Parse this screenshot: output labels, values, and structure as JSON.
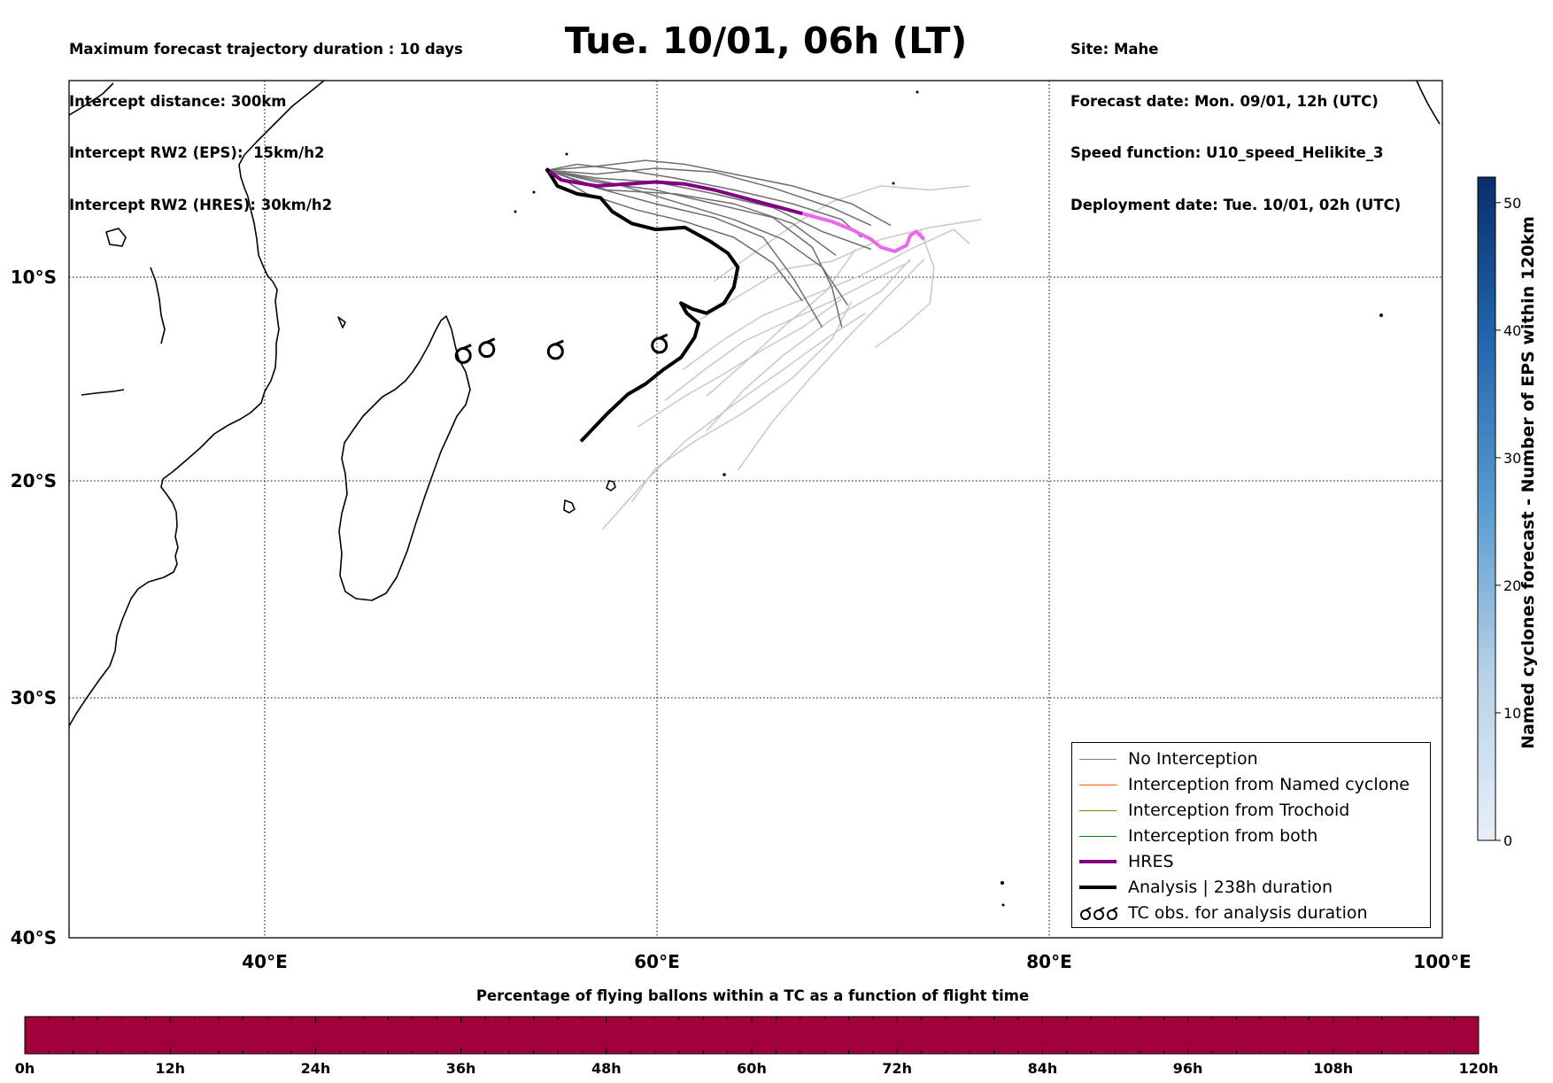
{
  "header": {
    "left_lines": [
      "Maximum forecast trajectory duration : 10 days",
      "Intercept distance: 300km",
      "Intercept RW2 (EPS):  15km/h2",
      "Intercept RW2 (HRES): 30km/h2"
    ],
    "title": "Tue. 10/01, 06h (LT)",
    "right_lines": [
      "Site: Mahe",
      "Forecast date: Mon. 09/01, 12h (UTC)",
      "Speed function: U10_speed_Helikite_3",
      "Deployment date: Tue. 10/01, 02h (UTC)"
    ]
  },
  "map": {
    "lon_labels": [
      "40°E",
      "60°E",
      "80°E",
      "100°E"
    ],
    "lat_labels": [
      "10°S",
      "20°S",
      "30°S",
      "40°S"
    ],
    "colors": {
      "hres_early": "#800080",
      "hres_late": "#ee66ee",
      "analysis": "#000000",
      "ens_no_interception": "#6e6e6e",
      "ens_other": "#c8c8c8"
    },
    "site": {
      "name": "Mahe",
      "lon": 55.5,
      "lat": -4.6
    },
    "tc_obs_markers": [
      {
        "lon": 51.2,
        "lat": -13.9
      },
      {
        "lon": 52.4,
        "lat": -13.6
      },
      {
        "lon": 55.9,
        "lat": -13.7
      },
      {
        "lon": 61.2,
        "lat": -13.4
      }
    ],
    "hres_track": [
      [
        55.5,
        -4.6
      ],
      [
        56.2,
        -5.1
      ],
      [
        58,
        -5.4
      ],
      [
        59.5,
        -5.3
      ],
      [
        61,
        -5.2
      ],
      [
        62.5,
        -5.3
      ],
      [
        64,
        -5.6
      ],
      [
        65.5,
        -6
      ],
      [
        67,
        -6.4
      ],
      [
        68.5,
        -6.8
      ],
      [
        70,
        -7.2
      ],
      [
        71,
        -7.6
      ],
      [
        72,
        -8.1
      ],
      [
        72.5,
        -8.5
      ],
      [
        73.2,
        -8.7
      ],
      [
        73.8,
        -8.4
      ],
      [
        74,
        -7.9
      ],
      [
        74.3,
        -7.7
      ],
      [
        74.7,
        -8.1
      ]
    ],
    "hres_color_change_index": 9,
    "analysis_track": [
      [
        55.5,
        -4.6
      ],
      [
        56,
        -5.4
      ],
      [
        57,
        -5.8
      ],
      [
        58.2,
        -6
      ],
      [
        58.8,
        -6.7
      ],
      [
        59.8,
        -7.3
      ],
      [
        61,
        -7.6
      ],
      [
        62.5,
        -7.5
      ],
      [
        63.8,
        -8.2
      ],
      [
        64.7,
        -8.8
      ],
      [
        65.2,
        -9.5
      ],
      [
        65,
        -10.5
      ],
      [
        64.5,
        -11.3
      ],
      [
        63.6,
        -11.8
      ],
      [
        62.9,
        -11.6
      ],
      [
        62.3,
        -11.3
      ],
      [
        62.6,
        -11.8
      ],
      [
        63.2,
        -12.3
      ],
      [
        63,
        -13
      ],
      [
        62.3,
        -14
      ],
      [
        61.4,
        -14.6
      ],
      [
        60.5,
        -15.3
      ],
      [
        59.6,
        -15.8
      ],
      [
        58.6,
        -16.7
      ],
      [
        57.8,
        -17.5
      ],
      [
        57.2,
        -18.1
      ]
    ],
    "ensemble_no_interception": [
      [
        [
          55.5,
          -4.6
        ],
        [
          58,
          -4.8
        ],
        [
          61,
          -4.5
        ],
        [
          64,
          -4.7
        ],
        [
          67,
          -5.5
        ],
        [
          70,
          -6.5
        ],
        [
          72,
          -7.4
        ]
      ],
      [
        [
          55.5,
          -4.6
        ],
        [
          58,
          -5.2
        ],
        [
          61,
          -5.6
        ],
        [
          64,
          -6.3
        ],
        [
          67,
          -7
        ],
        [
          69,
          -8.5
        ],
        [
          70,
          -10.5
        ],
        [
          70.5,
          -12.5
        ]
      ],
      [
        [
          55.5,
          -4.6
        ],
        [
          58,
          -5.5
        ],
        [
          61,
          -6.3
        ],
        [
          64,
          -7
        ],
        [
          66.5,
          -8
        ],
        [
          68,
          -10
        ],
        [
          69.5,
          -12.5
        ]
      ],
      [
        [
          55.5,
          -4.6
        ],
        [
          58,
          -4.4
        ],
        [
          60.5,
          -4.1
        ],
        [
          62.5,
          -4.3
        ],
        [
          65,
          -4.8
        ],
        [
          68,
          -5.4
        ],
        [
          71,
          -6.3
        ],
        [
          73,
          -7.4
        ]
      ],
      [
        [
          55.5,
          -4.6
        ],
        [
          58,
          -5
        ],
        [
          61,
          -5.2
        ],
        [
          64,
          -5.8
        ],
        [
          67,
          -6.5
        ],
        [
          69.5,
          -7.7
        ],
        [
          72,
          -8.6
        ]
      ],
      [
        [
          55.5,
          -4.6
        ],
        [
          57.5,
          -5.8
        ],
        [
          60,
          -6.6
        ],
        [
          62.5,
          -7.2
        ],
        [
          65,
          -8
        ],
        [
          67,
          -9.3
        ],
        [
          68.5,
          -11.2
        ]
      ],
      [
        [
          55.5,
          -4.6
        ],
        [
          58.5,
          -5.6
        ],
        [
          62,
          -5.8
        ],
        [
          65,
          -6.3
        ],
        [
          68,
          -7.3
        ],
        [
          70.2,
          -8.9
        ]
      ],
      [
        [
          55.5,
          -4.6
        ],
        [
          57,
          -4.3
        ],
        [
          59.5,
          -4.6
        ],
        [
          62,
          -5
        ],
        [
          65,
          -5.6
        ],
        [
          68,
          -6.3
        ],
        [
          70.5,
          -7.1
        ],
        [
          71.5,
          -8
        ]
      ],
      [
        [
          55.5,
          -4.6
        ],
        [
          59,
          -5.3
        ],
        [
          62,
          -6.2
        ],
        [
          65,
          -7.1
        ],
        [
          67.5,
          -8.1
        ],
        [
          69.5,
          -9.5
        ],
        [
          70.8,
          -11.4
        ]
      ]
    ],
    "ensemble_other": [
      [
        [
          64,
          -10.2
        ],
        [
          66,
          -8.8
        ],
        [
          68,
          -7.4
        ],
        [
          70,
          -6.2
        ],
        [
          72.5,
          -5.4
        ],
        [
          75,
          -5.6
        ],
        [
          77,
          -5.4
        ]
      ],
      [
        [
          63.3,
          -12.1
        ],
        [
          65.5,
          -10.8
        ],
        [
          67.5,
          -9.6
        ],
        [
          70,
          -9.2
        ],
        [
          72.5,
          -8.1
        ],
        [
          75,
          -7.5
        ],
        [
          77.6,
          -7.1
        ]
      ],
      [
        [
          62.4,
          -14.6
        ],
        [
          64.5,
          -13.1
        ],
        [
          66.5,
          -11.9
        ],
        [
          69,
          -10.9
        ],
        [
          71.5,
          -9.9
        ],
        [
          74,
          -8.6
        ],
        [
          76.2,
          -7.6
        ],
        [
          77,
          -8.3
        ]
      ],
      [
        [
          61.5,
          -16.1
        ],
        [
          63.5,
          -14.6
        ],
        [
          65.5,
          -13.2
        ],
        [
          67.5,
          -12.3
        ],
        [
          70,
          -11.2
        ],
        [
          72,
          -10.2
        ],
        [
          74,
          -9.2
        ]
      ],
      [
        [
          60.1,
          -17.4
        ],
        [
          62.5,
          -15.9
        ],
        [
          64.5,
          -14.8
        ],
        [
          66.5,
          -13.6
        ],
        [
          68.5,
          -12.5
        ],
        [
          70.5,
          -11.1
        ]
      ],
      [
        [
          59.8,
          -21
        ],
        [
          61,
          -19.4
        ],
        [
          63,
          -18.1
        ],
        [
          65.5,
          -16.7
        ],
        [
          68,
          -15
        ],
        [
          70,
          -13.1
        ],
        [
          71,
          -11.2
        ]
      ],
      [
        [
          58.3,
          -22.3
        ],
        [
          60.3,
          -20.2
        ],
        [
          62.5,
          -18.1
        ],
        [
          65,
          -16.3
        ],
        [
          67.5,
          -14.6
        ],
        [
          69.8,
          -13
        ],
        [
          71.7,
          -11.8
        ]
      ],
      [
        [
          65.2,
          -19.5
        ],
        [
          67,
          -17.1
        ],
        [
          69,
          -14.9
        ],
        [
          71,
          -12.8
        ],
        [
          73,
          -10.8
        ],
        [
          74.7,
          -9.1
        ]
      ],
      [
        [
          63.6,
          -17.6
        ],
        [
          65.5,
          -15.6
        ],
        [
          67.5,
          -13.9
        ],
        [
          70,
          -12.1
        ],
        [
          72.5,
          -10.7
        ],
        [
          74,
          -9.1
        ]
      ],
      [
        [
          72.2,
          -13.5
        ],
        [
          73.5,
          -12.6
        ],
        [
          75,
          -11.3
        ],
        [
          75.2,
          -9.5
        ],
        [
          74.5,
          -7.6
        ]
      ],
      [
        [
          63.6,
          -15.9
        ],
        [
          65.5,
          -14.3
        ],
        [
          67.5,
          -12.5
        ],
        [
          69.7,
          -10.7
        ],
        [
          71.2,
          -8.6
        ]
      ]
    ]
  },
  "legend": {
    "items": [
      {
        "label": "No Interception",
        "color": "#808080"
      },
      {
        "label": "Interception from Named cyclone",
        "color": "#ff5500"
      },
      {
        "label": "Interception from Trochoid",
        "color": "#808000"
      },
      {
        "label": "Interception from both",
        "color": "#008000"
      },
      {
        "label": "HRES",
        "color": "#800080"
      },
      {
        "label": "Analysis | 238h duration",
        "color": "#000000"
      },
      {
        "label": "TC obs. for analysis duration",
        "color": "#000000"
      }
    ]
  },
  "colorbar_right": {
    "title": "Named cyclones forecast - Number of EPS within 120km",
    "ticks": [
      "0",
      "10",
      "20",
      "30",
      "40",
      "50"
    ],
    "range": [
      0,
      52
    ],
    "color_low": "#e8eff8",
    "color_high": "#0a2f6b"
  },
  "colorbar_bottom": {
    "title": "Percentage of flying ballons within a TC as a function of flight time",
    "ticks": [
      "0h",
      "12h",
      "24h",
      "36h",
      "48h",
      "60h",
      "72h",
      "84h",
      "96h",
      "108h",
      "120h"
    ],
    "fill_color": "#a0003c"
  }
}
